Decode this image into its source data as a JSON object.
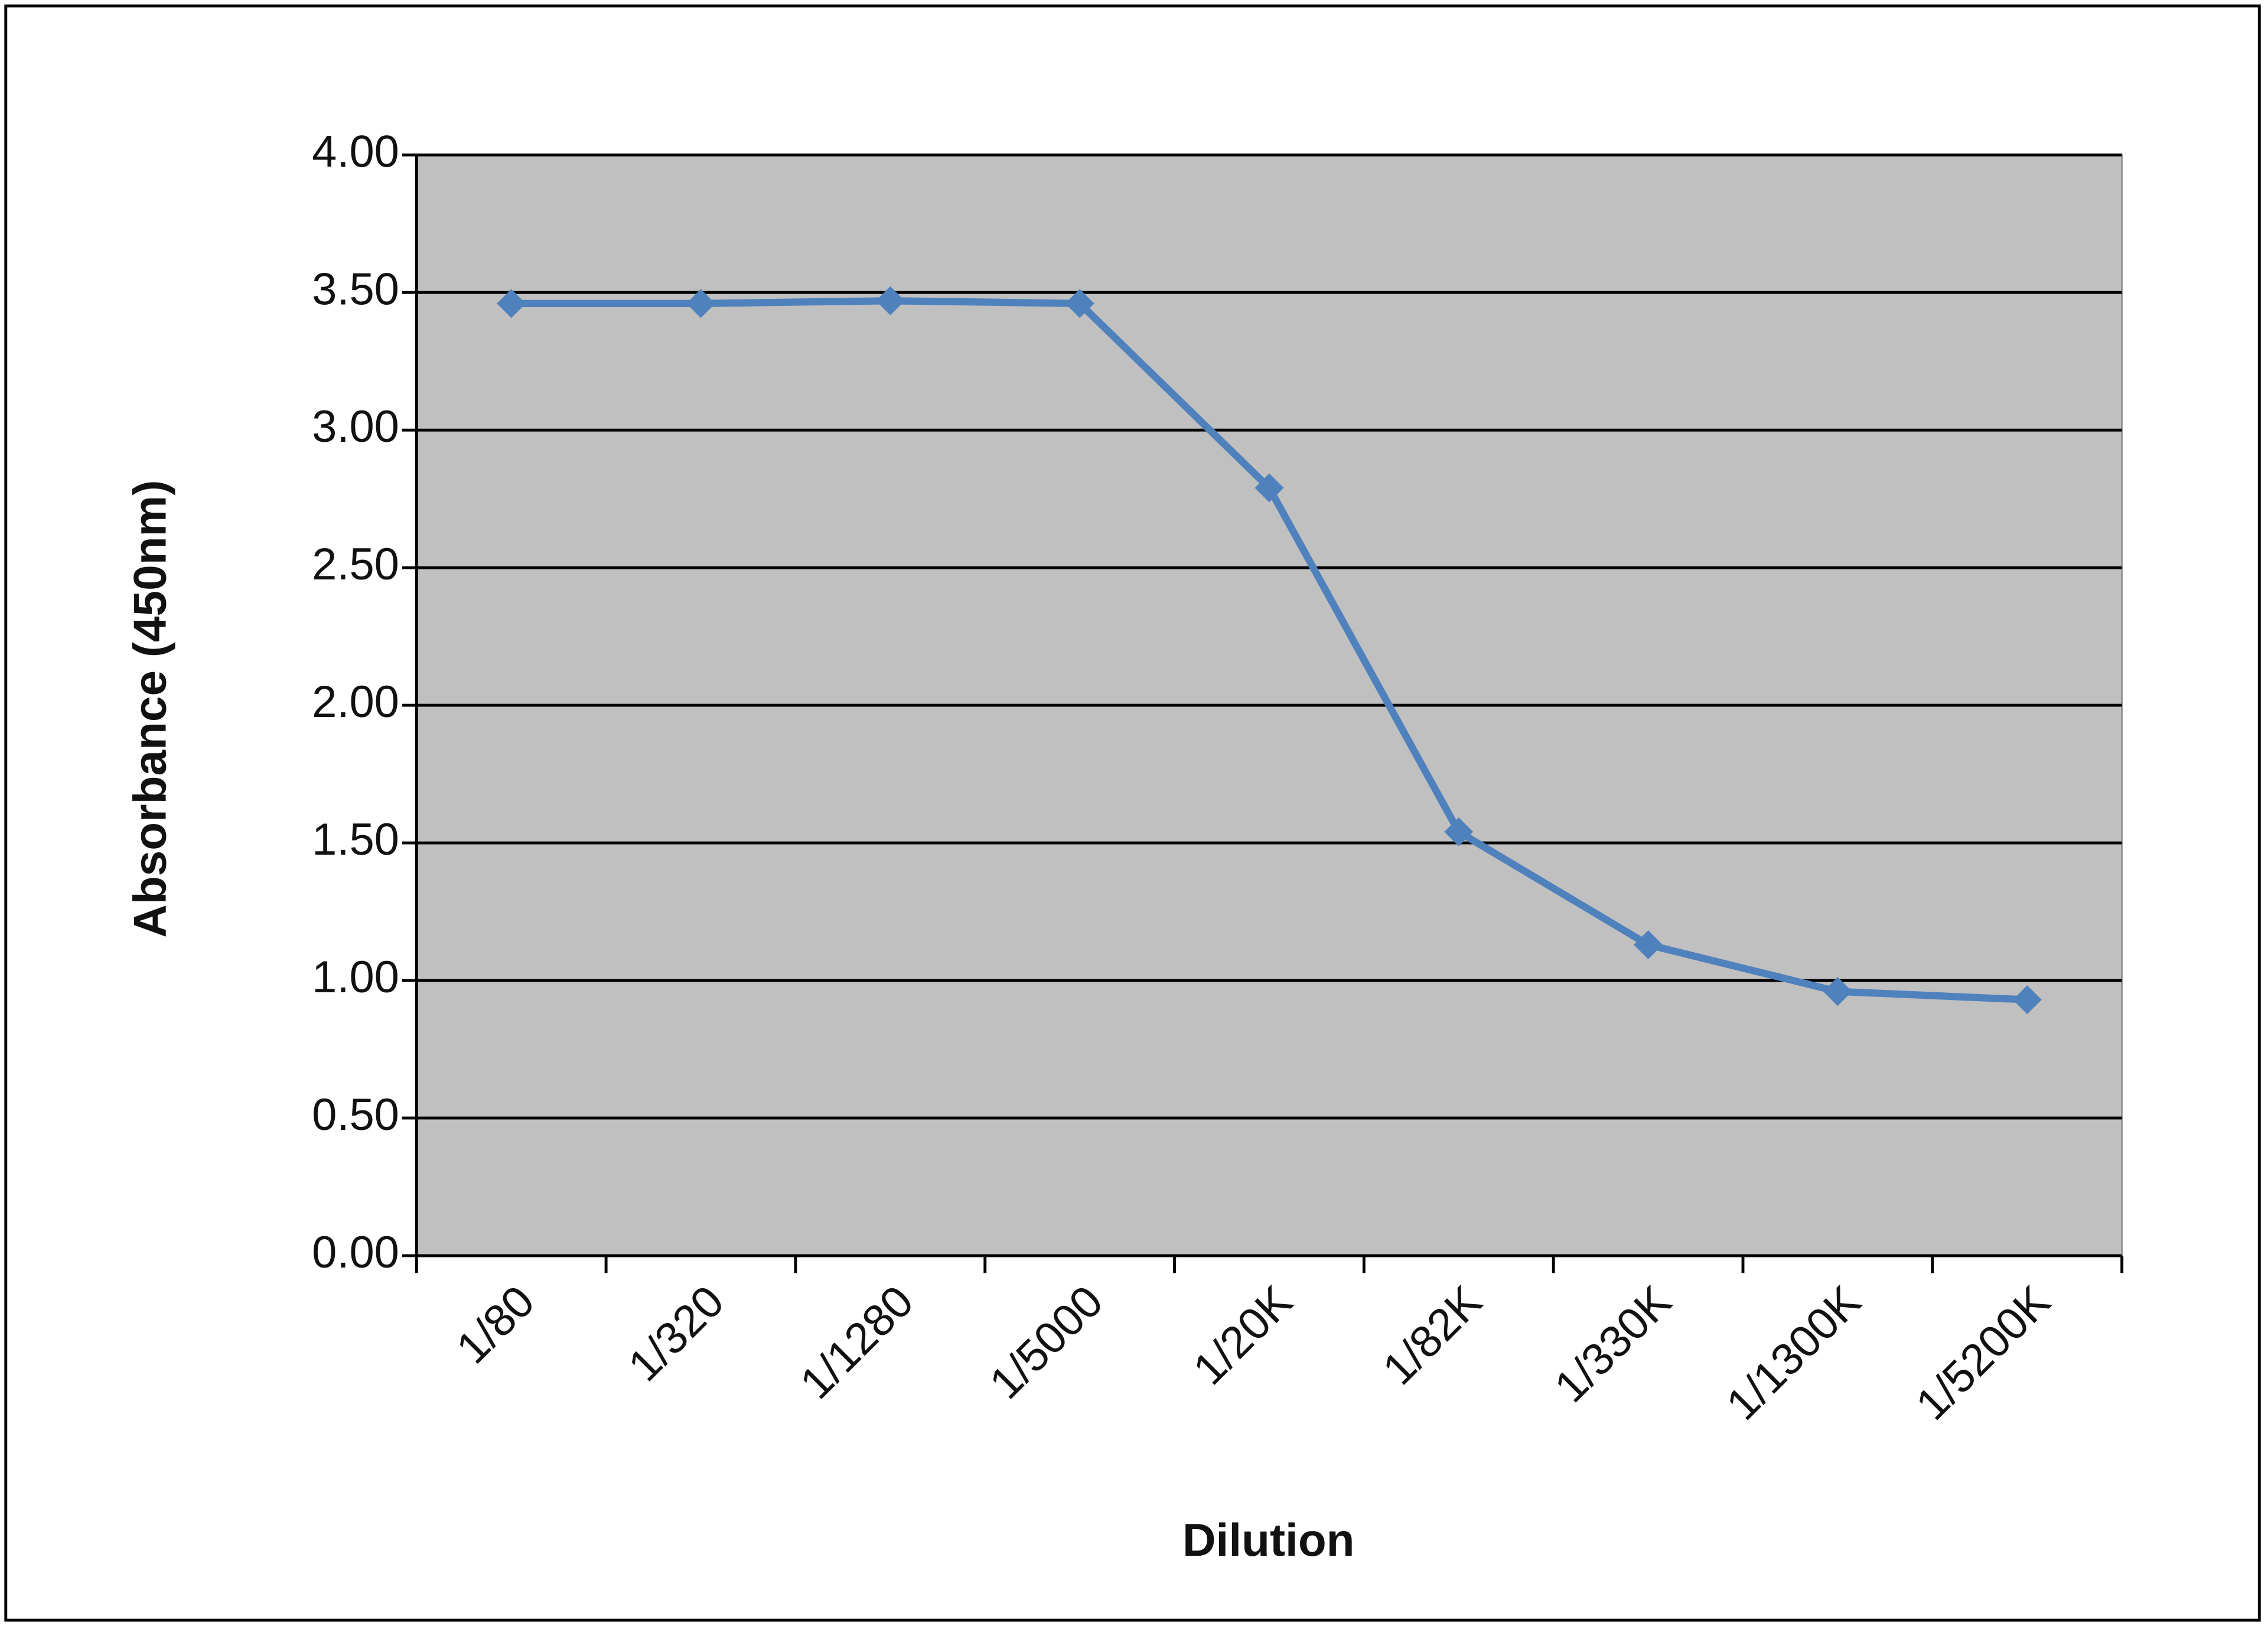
{
  "chart_data": {
    "type": "line",
    "x_label": "Dilution",
    "y_label": "Absorbance (450nm)",
    "categories": [
      "1/80",
      "1/320",
      "1/1280",
      "1/5000",
      "1/20K",
      "1/82K",
      "1/330K",
      "1/1300K",
      "1/5200K"
    ],
    "values": [
      3.46,
      3.46,
      3.47,
      3.46,
      2.79,
      1.54,
      1.13,
      0.96,
      0.93
    ],
    "color": "#4f81bd",
    "ylim": [
      0,
      4
    ],
    "yticks": [
      {
        "value": 0,
        "label": "0.00"
      },
      {
        "value": 0.5,
        "label": "0.50"
      },
      {
        "value": 1,
        "label": "1.00"
      },
      {
        "value": 1.5,
        "label": "1.50"
      },
      {
        "value": 2,
        "label": "2.00"
      },
      {
        "value": 2.5,
        "label": "2.50"
      },
      {
        "value": 3,
        "label": "3.00"
      },
      {
        "value": 3.5,
        "label": "3.50"
      },
      {
        "value": 4,
        "label": "4.00"
      }
    ],
    "grid": true
  }
}
